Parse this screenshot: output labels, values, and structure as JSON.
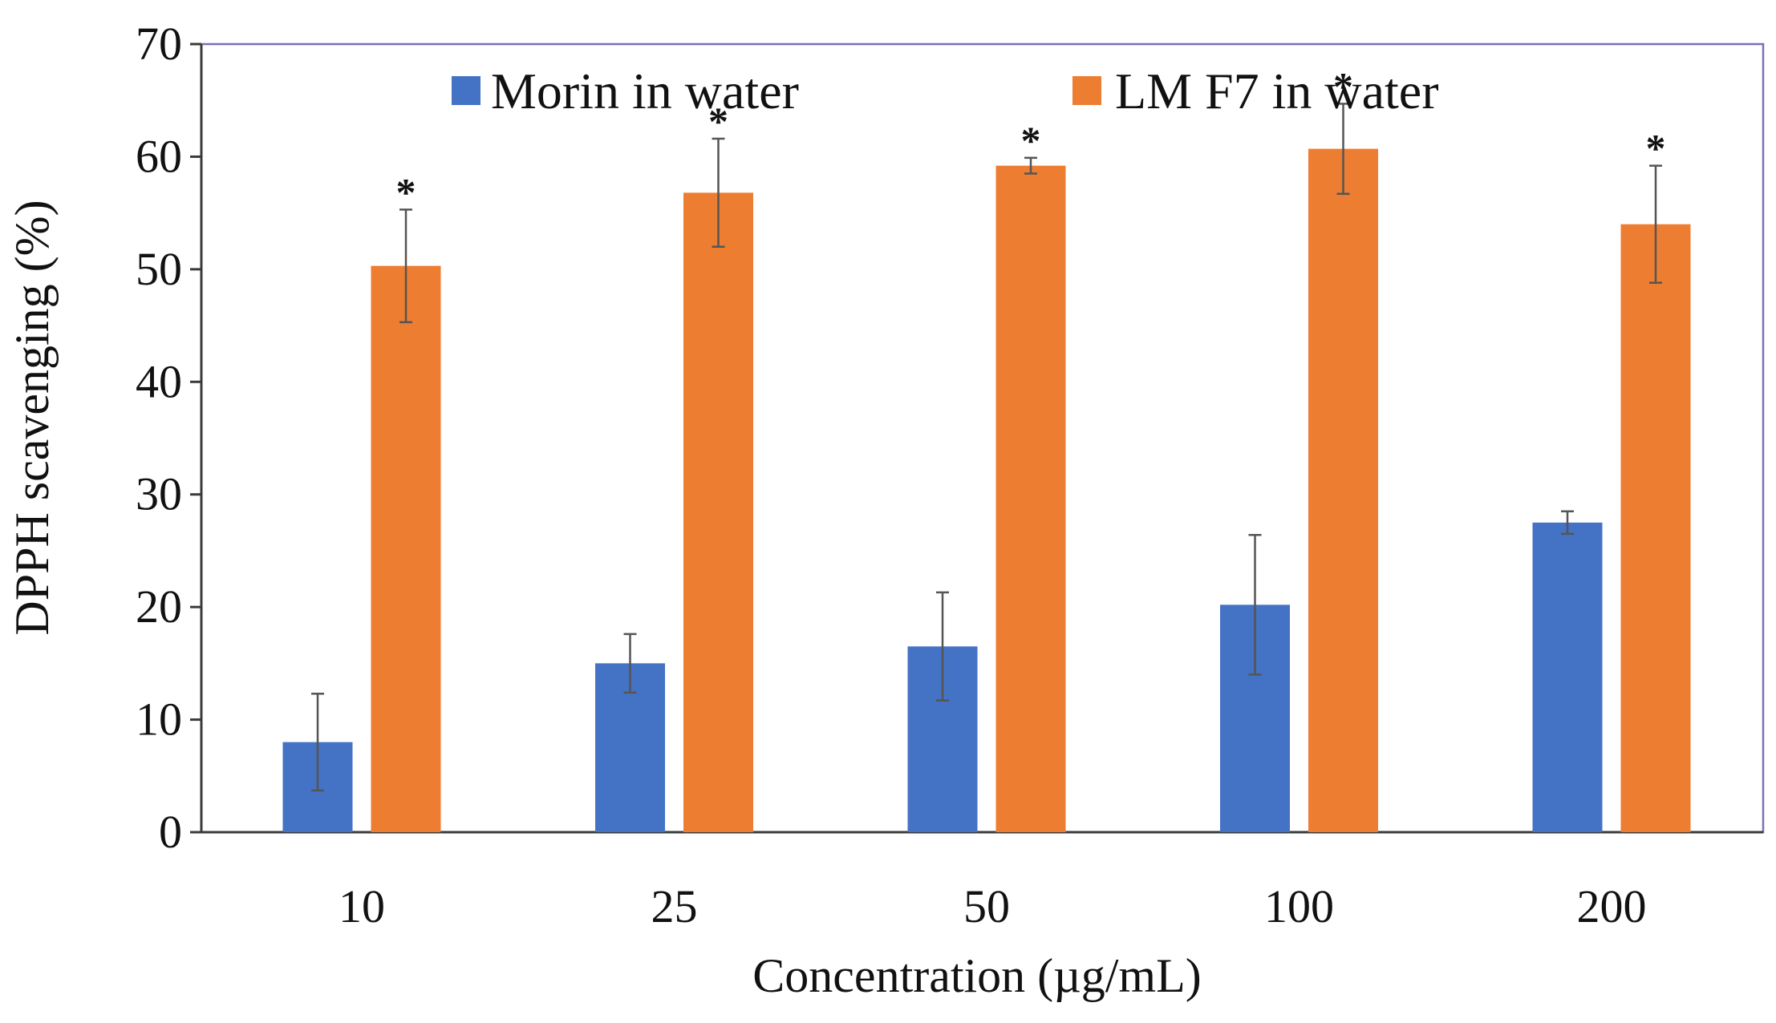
{
  "chart_data": {
    "type": "bar",
    "title": "",
    "xlabel": "Concentration (µg/mL)",
    "ylabel": "DPPH scavenging (%)",
    "ylim": [
      0,
      70
    ],
    "yticks": [
      "0",
      "10",
      "20",
      "30",
      "40",
      "50",
      "60",
      "70"
    ],
    "categories": [
      "10",
      "25",
      "50",
      "100",
      "200"
    ],
    "series": [
      {
        "name": "Morin in water",
        "color": "#4472C4",
        "values": [
          8,
          15,
          16.5,
          20.2,
          27.5
        ],
        "errors": [
          4.3,
          2.6,
          4.8,
          6.2,
          1.0
        ],
        "significance": [
          "",
          "",
          "",
          "",
          ""
        ]
      },
      {
        "name": "LM F7 in water",
        "color": "#ED7D31",
        "values": [
          50.3,
          56.8,
          59.2,
          60.7,
          54
        ],
        "errors": [
          5,
          4.8,
          0.7,
          4,
          5.2
        ],
        "significance": [
          "*",
          "*",
          "*",
          "*",
          "*"
        ]
      }
    ],
    "legend": "top-center",
    "grid": false,
    "frame_color": "#7E6FB4",
    "axis_color": "#3A3A3A",
    "errorbar_color": "#555555"
  }
}
